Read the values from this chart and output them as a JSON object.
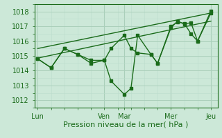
{
  "xlabel": "Pression niveau de la mer( hPa )",
  "bg_color": "#cce8d8",
  "grid_major_color": "#aacfba",
  "grid_minor_color": "#bbdccc",
  "line_color": "#1a6b1a",
  "label_color": "#1a6b1a",
  "ylim": [
    1011.5,
    1018.5
  ],
  "yticks": [
    1012,
    1013,
    1014,
    1015,
    1016,
    1017,
    1018
  ],
  "x_tick_labels": [
    "Lun",
    "Ven",
    "Mar",
    "Mer",
    "Jeu"
  ],
  "x_tick_positions": [
    0,
    10,
    13,
    20,
    26
  ],
  "xlim": [
    -0.5,
    27
  ],
  "series1_x": [
    0,
    2,
    4,
    6,
    8,
    10,
    11,
    13,
    14,
    15,
    17,
    18,
    20,
    21,
    22,
    23,
    24,
    26
  ],
  "series1_y": [
    1014.8,
    1014.2,
    1015.5,
    1015.1,
    1014.7,
    1014.7,
    1015.5,
    1016.4,
    1015.5,
    1015.2,
    1015.1,
    1014.5,
    1017.0,
    1017.3,
    1017.2,
    1016.5,
    1016.0,
    1018.05
  ],
  "series2_x": [
    0,
    2,
    4,
    6,
    8,
    10,
    11,
    13,
    14,
    15,
    17,
    18,
    20,
    21,
    22,
    23,
    24,
    26
  ],
  "series2_y": [
    1014.8,
    1014.2,
    1015.5,
    1015.1,
    1014.5,
    1014.7,
    1013.3,
    1012.4,
    1012.8,
    1016.4,
    1015.1,
    1014.5,
    1016.9,
    1017.35,
    1017.15,
    1017.25,
    1016.0,
    1017.9
  ],
  "trend1_x": [
    0,
    26
  ],
  "trend1_y": [
    1014.85,
    1017.35
  ],
  "trend2_x": [
    0,
    26
  ],
  "trend2_y": [
    1015.5,
    1017.9
  ],
  "vline_positions": [
    10,
    13,
    20,
    26
  ],
  "marker_size": 2.5,
  "line_width": 1.0,
  "font_size": 7,
  "xlabel_font_size": 8
}
